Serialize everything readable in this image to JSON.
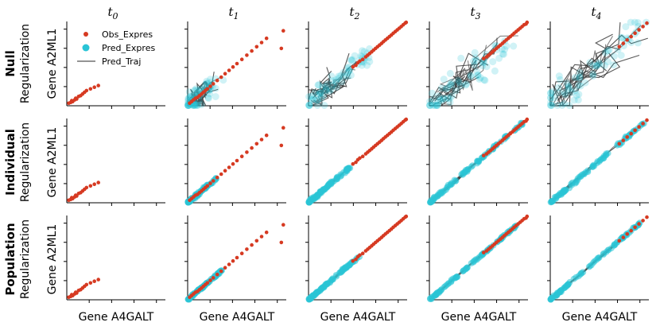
{
  "figure": {
    "columns": [
      {
        "title": "t",
        "sub": "0"
      },
      {
        "title": "t",
        "sub": "1"
      },
      {
        "title": "t",
        "sub": "2"
      },
      {
        "title": "t",
        "sub": "3"
      },
      {
        "title": "t",
        "sub": "4"
      }
    ],
    "rows": [
      {
        "bold": "Null",
        "second": "Regularization"
      },
      {
        "bold": "Individual",
        "second": "Regularization"
      },
      {
        "bold": "Population",
        "second": "Regularization"
      }
    ],
    "ylabel": "Gene A2ML1",
    "xlabel": "Gene A4GALT",
    "legend": {
      "items": [
        {
          "label": "Obs_Expres",
          "kind": "dot",
          "color": "#d63a22"
        },
        {
          "label": "Pred_Expres",
          "kind": "dot",
          "color": "#29c4d6"
        },
        {
          "label": "Pred_Traj",
          "kind": "line",
          "color": "#707070"
        }
      ]
    },
    "colors": {
      "obs": "#d63a22",
      "pred": "#29c4d6",
      "traj": "#3a3a3a"
    }
  },
  "chart_data": {
    "type": "scatter",
    "xlabel": "Gene A4GALT",
    "ylabel": "Gene A2ML1",
    "xlim": [
      0,
      1
    ],
    "ylim": [
      0,
      1
    ],
    "observed": {
      "t0": {
        "x": [
          0.02,
          0.04,
          0.05,
          0.06,
          0.08,
          0.09,
          0.1,
          0.12,
          0.14,
          0.16,
          0.18,
          0.2,
          0.24,
          0.28,
          0.32
        ],
        "y": [
          0.03,
          0.04,
          0.06,
          0.05,
          0.07,
          0.09,
          0.08,
          0.11,
          0.12,
          0.14,
          0.16,
          0.18,
          0.2,
          0.22,
          0.24
        ]
      },
      "t1": {
        "x": [
          0.02,
          0.04,
          0.06,
          0.08,
          0.1,
          0.12,
          0.14,
          0.16,
          0.18,
          0.2,
          0.23,
          0.26,
          0.3,
          0.34,
          0.38,
          0.42,
          0.46,
          0.5,
          0.55,
          0.6,
          0.65,
          0.7,
          0.75,
          0.8,
          0.95,
          0.97
        ],
        "y": [
          0.03,
          0.05,
          0.07,
          0.09,
          0.1,
          0.12,
          0.14,
          0.16,
          0.18,
          0.2,
          0.23,
          0.26,
          0.3,
          0.34,
          0.38,
          0.42,
          0.46,
          0.5,
          0.55,
          0.6,
          0.65,
          0.7,
          0.75,
          0.8,
          0.68,
          0.89
        ]
      },
      "t2": {
        "x": [
          0.45,
          0.48,
          0.5,
          0.52,
          0.55,
          0.58,
          0.6,
          0.62,
          0.64,
          0.66,
          0.68,
          0.7,
          0.72,
          0.74,
          0.76,
          0.78,
          0.8,
          0.82,
          0.84,
          0.86,
          0.88,
          0.9,
          0.92,
          0.94,
          0.96,
          0.98,
          0.99
        ],
        "y": [
          0.46,
          0.48,
          0.51,
          0.53,
          0.55,
          0.58,
          0.6,
          0.62,
          0.64,
          0.66,
          0.68,
          0.7,
          0.72,
          0.74,
          0.76,
          0.78,
          0.8,
          0.82,
          0.84,
          0.86,
          0.88,
          0.9,
          0.92,
          0.94,
          0.96,
          0.98,
          0.99
        ]
      },
      "t3": {
        "x": [
          0.55,
          0.58,
          0.6,
          0.62,
          0.64,
          0.66,
          0.68,
          0.7,
          0.72,
          0.74,
          0.76,
          0.78,
          0.8,
          0.82,
          0.84,
          0.86,
          0.88,
          0.9,
          0.92,
          0.94,
          0.96,
          0.98,
          0.99
        ],
        "y": [
          0.56,
          0.58,
          0.6,
          0.62,
          0.64,
          0.66,
          0.68,
          0.7,
          0.72,
          0.74,
          0.76,
          0.78,
          0.8,
          0.82,
          0.84,
          0.86,
          0.88,
          0.9,
          0.92,
          0.94,
          0.96,
          0.97,
          0.99
        ]
      },
      "t4": {
        "x": [
          0.7,
          0.74,
          0.78,
          0.82,
          0.86,
          0.9,
          0.94,
          0.98
        ],
        "y": [
          0.7,
          0.74,
          0.78,
          0.82,
          0.86,
          0.9,
          0.94,
          0.98
        ]
      }
    }
  }
}
